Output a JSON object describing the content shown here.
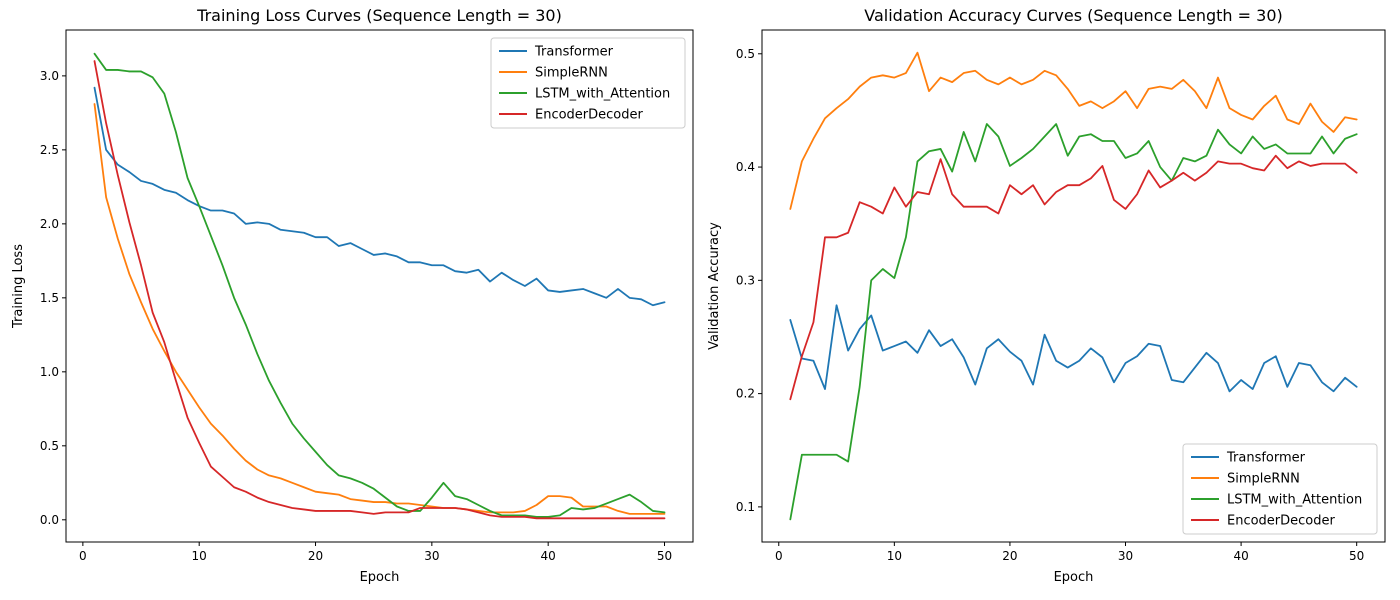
{
  "chart_data": [
    {
      "type": "line",
      "title": "Training Loss Curves (Sequence Length = 30)",
      "xlabel": "Epoch",
      "ylabel": "Training Loss",
      "xlim": [
        -1.45,
        52.45
      ],
      "ylim": [
        -0.15,
        3.31
      ],
      "xticks": [
        0,
        10,
        20,
        30,
        40,
        50
      ],
      "yticks": [
        0.0,
        0.5,
        1.0,
        1.5,
        2.0,
        2.5,
        3.0
      ],
      "grid": false,
      "legend": "upper right",
      "x": [
        1,
        2,
        3,
        4,
        5,
        6,
        7,
        8,
        9,
        10,
        11,
        12,
        13,
        14,
        15,
        16,
        17,
        18,
        19,
        20,
        21,
        22,
        23,
        24,
        25,
        26,
        27,
        28,
        29,
        30,
        31,
        32,
        33,
        34,
        35,
        36,
        37,
        38,
        39,
        40,
        41,
        42,
        43,
        44,
        45,
        46,
        47,
        48,
        49,
        50
      ],
      "series": [
        {
          "name": "Transformer",
          "color": "#1f77b4",
          "values": [
            2.92,
            2.5,
            2.4,
            2.35,
            2.29,
            2.27,
            2.23,
            2.21,
            2.16,
            2.12,
            2.09,
            2.09,
            2.07,
            2.0,
            2.01,
            2.0,
            1.96,
            1.95,
            1.94,
            1.91,
            1.91,
            1.85,
            1.87,
            1.83,
            1.79,
            1.8,
            1.78,
            1.74,
            1.74,
            1.72,
            1.72,
            1.68,
            1.67,
            1.69,
            1.61,
            1.67,
            1.62,
            1.58,
            1.63,
            1.55,
            1.54,
            1.55,
            1.56,
            1.53,
            1.5,
            1.56,
            1.5,
            1.49,
            1.45,
            1.47
          ]
        },
        {
          "name": "SimpleRNN",
          "color": "#ff7f0e",
          "values": [
            2.81,
            2.18,
            1.9,
            1.66,
            1.47,
            1.29,
            1.14,
            1.0,
            0.88,
            0.76,
            0.65,
            0.57,
            0.48,
            0.4,
            0.34,
            0.3,
            0.28,
            0.25,
            0.22,
            0.19,
            0.18,
            0.17,
            0.14,
            0.13,
            0.12,
            0.12,
            0.11,
            0.11,
            0.1,
            0.09,
            0.08,
            0.08,
            0.07,
            0.06,
            0.05,
            0.05,
            0.05,
            0.06,
            0.1,
            0.16,
            0.16,
            0.15,
            0.09,
            0.09,
            0.09,
            0.06,
            0.04,
            0.04,
            0.04,
            0.04
          ]
        },
        {
          "name": "LSTM_with_Attention",
          "color": "#2ca02c",
          "values": [
            3.15,
            3.04,
            3.04,
            3.03,
            3.03,
            2.99,
            2.88,
            2.62,
            2.31,
            2.12,
            1.92,
            1.72,
            1.5,
            1.32,
            1.12,
            0.94,
            0.79,
            0.65,
            0.55,
            0.46,
            0.37,
            0.3,
            0.28,
            0.25,
            0.21,
            0.15,
            0.09,
            0.06,
            0.06,
            0.15,
            0.25,
            0.16,
            0.14,
            0.1,
            0.06,
            0.03,
            0.03,
            0.03,
            0.02,
            0.02,
            0.03,
            0.08,
            0.07,
            0.08,
            0.11,
            0.14,
            0.17,
            0.12,
            0.06,
            0.05
          ]
        },
        {
          "name": "EncoderDecoder",
          "color": "#d62728",
          "values": [
            3.1,
            2.68,
            2.33,
            2.01,
            1.72,
            1.4,
            1.2,
            0.94,
            0.69,
            0.52,
            0.36,
            0.29,
            0.22,
            0.19,
            0.15,
            0.12,
            0.1,
            0.08,
            0.07,
            0.06,
            0.06,
            0.06,
            0.06,
            0.05,
            0.04,
            0.05,
            0.05,
            0.05,
            0.08,
            0.08,
            0.08,
            0.08,
            0.07,
            0.05,
            0.03,
            0.02,
            0.02,
            0.02,
            0.01,
            0.01,
            0.01,
            0.01,
            0.01,
            0.01,
            0.01,
            0.01,
            0.01,
            0.01,
            0.01,
            0.01
          ]
        }
      ]
    },
    {
      "type": "line",
      "title": "Validation Accuracy Curves (Sequence Length = 30)",
      "xlabel": "Epoch",
      "ylabel": "Validation Accuracy",
      "xlim": [
        -1.45,
        52.45
      ],
      "ylim": [
        0.069,
        0.521
      ],
      "xticks": [
        0,
        10,
        20,
        30,
        40,
        50
      ],
      "yticks": [
        0.1,
        0.2,
        0.3,
        0.4,
        0.5
      ],
      "grid": false,
      "legend": "lower right",
      "x": [
        1,
        2,
        3,
        4,
        5,
        6,
        7,
        8,
        9,
        10,
        11,
        12,
        13,
        14,
        15,
        16,
        17,
        18,
        19,
        20,
        21,
        22,
        23,
        24,
        25,
        26,
        27,
        28,
        29,
        30,
        31,
        32,
        33,
        34,
        35,
        36,
        37,
        38,
        39,
        40,
        41,
        42,
        43,
        44,
        45,
        46,
        47,
        48,
        49,
        50
      ],
      "series": [
        {
          "name": "Transformer",
          "color": "#1f77b4",
          "values": [
            0.265,
            0.231,
            0.229,
            0.204,
            0.278,
            0.238,
            0.257,
            0.269,
            0.238,
            0.242,
            0.246,
            0.236,
            0.256,
            0.242,
            0.248,
            0.232,
            0.208,
            0.24,
            0.248,
            0.237,
            0.229,
            0.208,
            0.252,
            0.229,
            0.223,
            0.229,
            0.24,
            0.232,
            0.21,
            0.227,
            0.233,
            0.244,
            0.242,
            0.212,
            0.21,
            0.223,
            0.236,
            0.227,
            0.202,
            0.212,
            0.204,
            0.227,
            0.233,
            0.206,
            0.227,
            0.225,
            0.21,
            0.202,
            0.214,
            0.206
          ]
        },
        {
          "name": "SimpleRNN",
          "color": "#ff7f0e",
          "values": [
            0.363,
            0.405,
            0.425,
            0.443,
            0.452,
            0.46,
            0.471,
            0.479,
            0.481,
            0.479,
            0.483,
            0.501,
            0.467,
            0.479,
            0.475,
            0.483,
            0.485,
            0.477,
            0.473,
            0.479,
            0.473,
            0.477,
            0.485,
            0.481,
            0.469,
            0.454,
            0.458,
            0.452,
            0.458,
            0.467,
            0.452,
            0.469,
            0.471,
            0.469,
            0.477,
            0.467,
            0.452,
            0.479,
            0.452,
            0.446,
            0.442,
            0.454,
            0.463,
            0.442,
            0.438,
            0.456,
            0.44,
            0.431,
            0.444,
            0.442
          ]
        },
        {
          "name": "LSTM_with_Attention",
          "color": "#2ca02c",
          "values": [
            0.089,
            0.146,
            0.146,
            0.146,
            0.146,
            0.14,
            0.206,
            0.3,
            0.31,
            0.302,
            0.338,
            0.405,
            0.414,
            0.416,
            0.396,
            0.431,
            0.405,
            0.438,
            0.427,
            0.401,
            0.408,
            0.416,
            0.427,
            0.438,
            0.41,
            0.427,
            0.429,
            0.423,
            0.423,
            0.408,
            0.412,
            0.423,
            0.4,
            0.388,
            0.408,
            0.405,
            0.41,
            0.433,
            0.42,
            0.412,
            0.427,
            0.416,
            0.42,
            0.412,
            0.412,
            0.412,
            0.427,
            0.412,
            0.425,
            0.429
          ]
        },
        {
          "name": "EncoderDecoder",
          "color": "#d62728",
          "values": [
            0.195,
            0.233,
            0.263,
            0.338,
            0.338,
            0.342,
            0.369,
            0.365,
            0.359,
            0.382,
            0.365,
            0.378,
            0.376,
            0.407,
            0.376,
            0.365,
            0.365,
            0.365,
            0.359,
            0.384,
            0.376,
            0.384,
            0.367,
            0.378,
            0.384,
            0.384,
            0.39,
            0.401,
            0.371,
            0.363,
            0.376,
            0.397,
            0.382,
            0.388,
            0.395,
            0.388,
            0.395,
            0.405,
            0.403,
            0.403,
            0.399,
            0.397,
            0.41,
            0.399,
            0.405,
            0.401,
            0.403,
            0.403,
            0.403,
            0.395
          ]
        }
      ]
    }
  ]
}
